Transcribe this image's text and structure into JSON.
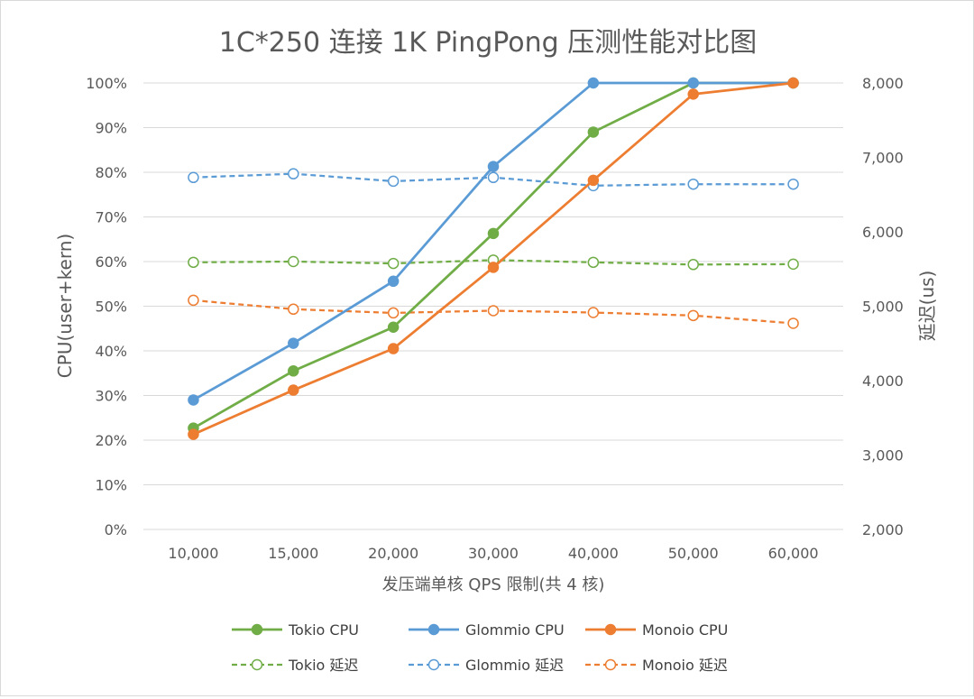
{
  "chart_data": {
    "type": "line",
    "title": "1C*250 连接 1K PingPong 压测性能对比图",
    "xlabel": "发压端单核 QPS 限制(共 4 核)",
    "ylabel": "CPU(user+kern)",
    "y2label": "延迟(us)",
    "categories": [
      "10,000",
      "15,000",
      "20,000",
      "30,000",
      "40,000",
      "50,000",
      "60,000"
    ],
    "ylim": [
      0,
      100
    ],
    "yticks": [
      "0%",
      "10%",
      "20%",
      "30%",
      "40%",
      "50%",
      "60%",
      "70%",
      "80%",
      "90%",
      "100%"
    ],
    "y2lim": [
      2000,
      8000
    ],
    "y2ticks": [
      "2,000",
      "3,000",
      "4,000",
      "5,000",
      "6,000",
      "7,000",
      "8,000"
    ],
    "grid": true,
    "legend_position": "bottom",
    "series": [
      {
        "name": "Tokio CPU",
        "axis": "left",
        "style": "solid",
        "marker": "filled",
        "color": "#70ad47",
        "values": [
          22.7,
          35.5,
          45.3,
          66.3,
          89.0,
          100,
          100
        ]
      },
      {
        "name": "Glommio CPU",
        "axis": "left",
        "style": "solid",
        "marker": "filled",
        "color": "#5b9bd5",
        "values": [
          29.0,
          41.7,
          55.6,
          81.3,
          100,
          100,
          100
        ]
      },
      {
        "name": "Monoio CPU",
        "axis": "left",
        "style": "solid",
        "marker": "filled",
        "color": "#ed7d31",
        "values": [
          21.3,
          31.2,
          40.5,
          58.7,
          78.2,
          97.5,
          100
        ]
      },
      {
        "name": "Tokio 延迟",
        "axis": "right",
        "style": "dashed",
        "marker": "hollow",
        "color": "#70ad47",
        "values": [
          5590,
          5600,
          5575,
          5620,
          5590,
          5560,
          5565
        ]
      },
      {
        "name": "Glommio 延迟",
        "axis": "right",
        "style": "dashed",
        "marker": "hollow",
        "color": "#5b9bd5",
        "values": [
          6730,
          6780,
          6680,
          6730,
          6620,
          6640,
          6640
        ]
      },
      {
        "name": "Monoio 延迟",
        "axis": "right",
        "style": "dashed",
        "marker": "hollow",
        "color": "#ed7d31",
        "values": [
          5080,
          4960,
          4910,
          4940,
          4915,
          4875,
          4770
        ]
      }
    ]
  }
}
